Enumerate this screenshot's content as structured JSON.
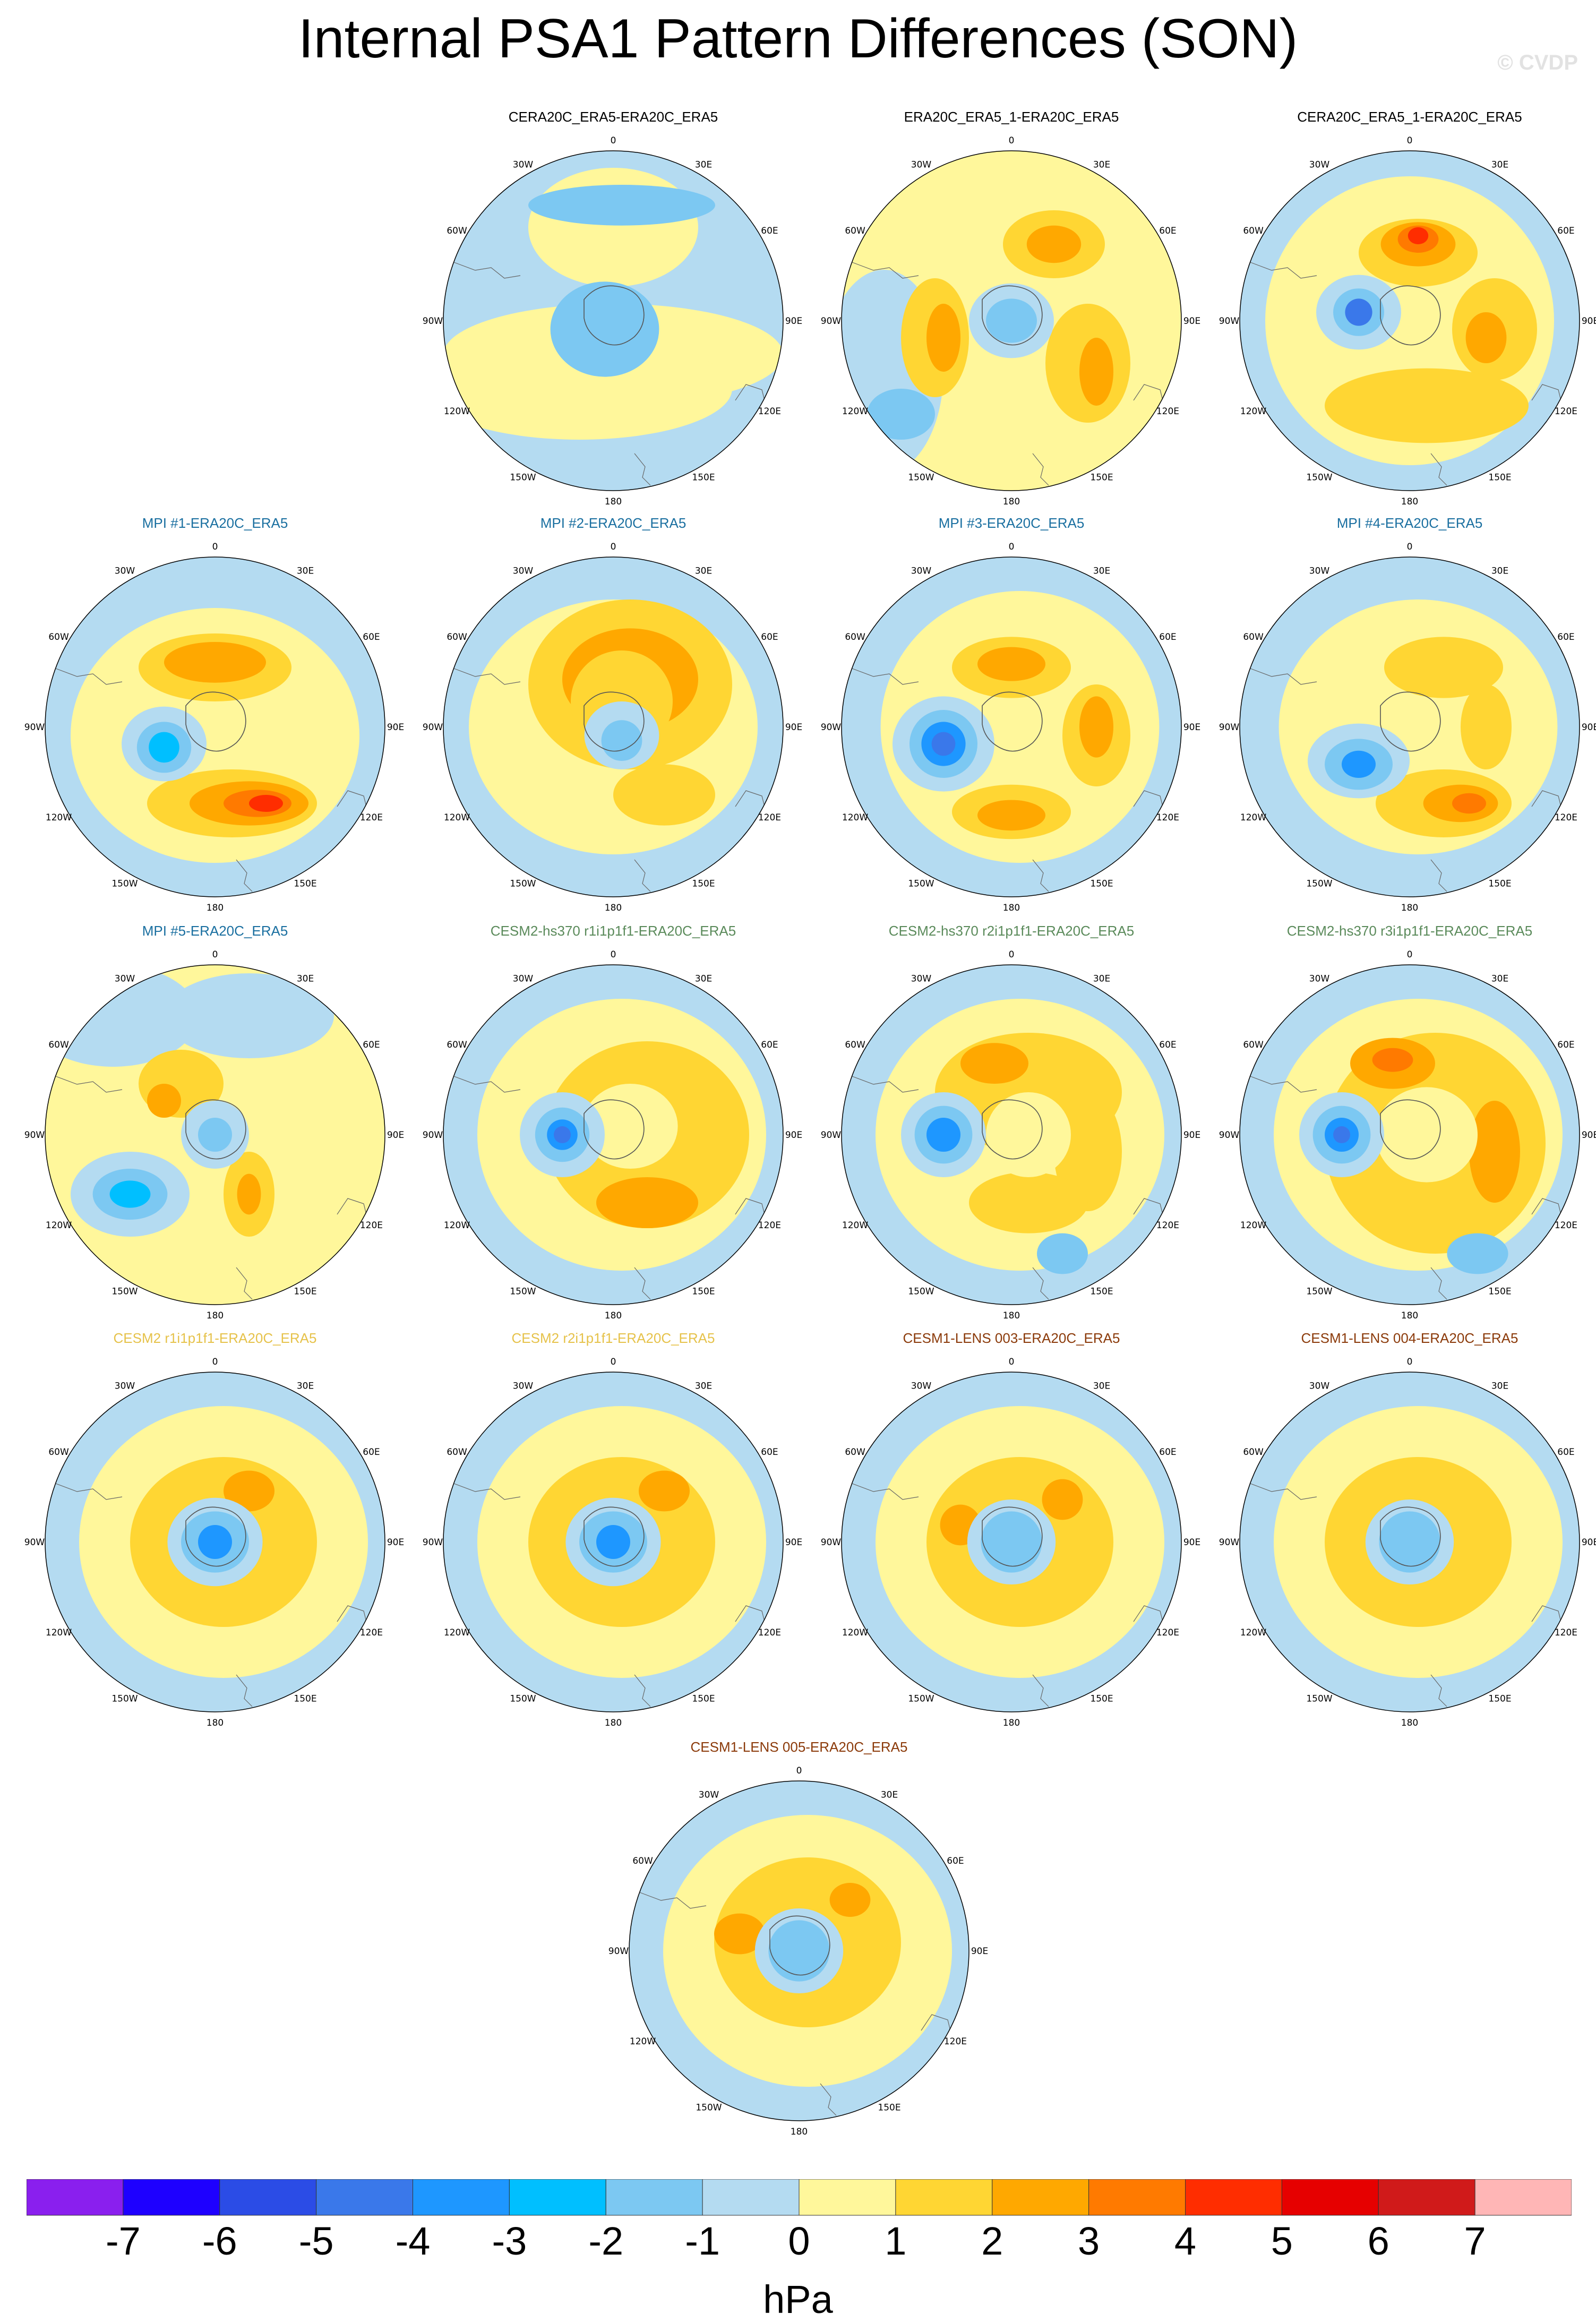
{
  "title": "Internal PSA1 Pattern Differences (SON)",
  "watermark": "© CVDP",
  "units": "hPa",
  "longitude_labels": {
    "top": "0",
    "a30e": "30E",
    "a60e": "60E",
    "a90e": "90E",
    "a120e": "120E",
    "a150e": "150E",
    "bottom": "180",
    "a150w": "150W",
    "a120w": "120W",
    "a90w": "90W",
    "a60w": "60W",
    "a30w": "30W"
  },
  "colorbar": {
    "colors": [
      "#8a1fee",
      "#1e00ff",
      "#2b4ce6",
      "#3a78ea",
      "#1e97ff",
      "#00bfff",
      "#7cc8f2",
      "#b4dbf1",
      "#fff79b",
      "#ffd633",
      "#ffa800",
      "#ff7a00",
      "#ff2d00",
      "#e60000",
      "#d01a1a",
      "#ffb6b6"
    ],
    "ticks": [
      "-7",
      "-6",
      "-5",
      "-4",
      "-3",
      "-2",
      "-1",
      "0",
      "1",
      "2",
      "3",
      "4",
      "5",
      "6",
      "7"
    ]
  },
  "panels": [
    {
      "title": "CERA20C_ERA5-ERA20C_ERA5",
      "title_color": "#000000",
      "base": "#b4dbf1",
      "blobs": [
        [
          0,
          0.2,
          1.0,
          0.3,
          "#fff79b"
        ],
        [
          0,
          -0.55,
          0.5,
          0.35,
          "#fff79b"
        ],
        [
          -0.2,
          0.4,
          0.9,
          0.3,
          "#fff79b"
        ],
        [
          0.05,
          -0.68,
          0.55,
          0.12,
          "#7cc8f2"
        ],
        [
          -0.05,
          0.05,
          0.32,
          0.28,
          "#7cc8f2"
        ]
      ]
    },
    {
      "title": "ERA20C_ERA5_1-ERA20C_ERA5",
      "title_color": "#000000",
      "base": "#fff79b",
      "blobs": [
        [
          -0.75,
          0.3,
          0.35,
          0.6,
          "#b4dbf1"
        ],
        [
          0.25,
          -0.45,
          0.3,
          0.2,
          "#ffd633"
        ],
        [
          -0.45,
          0.1,
          0.2,
          0.35,
          "#ffd633"
        ],
        [
          0.45,
          0.25,
          0.25,
          0.35,
          "#ffd633"
        ],
        [
          0.25,
          -0.45,
          0.16,
          0.11,
          "#ffa800"
        ],
        [
          -0.4,
          0.1,
          0.1,
          0.2,
          "#ffa800"
        ],
        [
          0.5,
          0.3,
          0.1,
          0.2,
          "#ffa800"
        ],
        [
          0.0,
          0.0,
          0.25,
          0.22,
          "#b4dbf1"
        ],
        [
          0.0,
          0.0,
          0.15,
          0.13,
          "#7cc8f2"
        ],
        [
          -0.65,
          0.55,
          0.2,
          0.15,
          "#7cc8f2"
        ]
      ]
    },
    {
      "title": "CERA20C_ERA5_1-ERA20C_ERA5",
      "title_color": "#000000",
      "base": "#b4dbf1",
      "blobs": [
        [
          0.0,
          0.0,
          0.85,
          0.85,
          "#fff79b"
        ],
        [
          0.05,
          -0.4,
          0.35,
          0.2,
          "#ffd633"
        ],
        [
          0.05,
          -0.45,
          0.22,
          0.13,
          "#ffa800"
        ],
        [
          0.05,
          -0.48,
          0.12,
          0.08,
          "#ff7a00"
        ],
        [
          0.05,
          -0.5,
          0.06,
          0.05,
          "#ff2d00"
        ],
        [
          0.5,
          0.05,
          0.25,
          0.3,
          "#ffd633"
        ],
        [
          0.45,
          0.1,
          0.12,
          0.15,
          "#ffa800"
        ],
        [
          0.1,
          0.5,
          0.6,
          0.22,
          "#ffd633"
        ],
        [
          -0.3,
          -0.05,
          0.25,
          0.22,
          "#b4dbf1"
        ],
        [
          -0.3,
          -0.05,
          0.15,
          0.14,
          "#7cc8f2"
        ],
        [
          -0.3,
          -0.05,
          0.08,
          0.08,
          "#3a78ea"
        ]
      ]
    },
    {
      "title": "MPI #1-ERA20C_ERA5",
      "title_color": "#1a6fa0",
      "base": "#b4dbf1",
      "blobs": [
        [
          0.0,
          0.05,
          0.85,
          0.75,
          "#fff79b"
        ],
        [
          0.0,
          -0.35,
          0.45,
          0.2,
          "#ffd633"
        ],
        [
          0.0,
          -0.38,
          0.3,
          0.12,
          "#ffa800"
        ],
        [
          0.1,
          0.45,
          0.5,
          0.2,
          "#ffd633"
        ],
        [
          0.2,
          0.45,
          0.35,
          0.13,
          "#ffa800"
        ],
        [
          0.25,
          0.45,
          0.2,
          0.08,
          "#ff7a00"
        ],
        [
          0.3,
          0.45,
          0.1,
          0.05,
          "#ff2d00"
        ],
        [
          -0.3,
          0.1,
          0.25,
          0.22,
          "#b4dbf1"
        ],
        [
          -0.3,
          0.12,
          0.16,
          0.15,
          "#7cc8f2"
        ],
        [
          -0.3,
          0.12,
          0.09,
          0.09,
          "#00bfff"
        ]
      ]
    },
    {
      "title": "MPI #2-ERA20C_ERA5",
      "title_color": "#1a6fa0",
      "base": "#b4dbf1",
      "blobs": [
        [
          0.0,
          0.0,
          0.85,
          0.75,
          "#fff79b"
        ],
        [
          0.1,
          -0.25,
          0.6,
          0.5,
          "#ffd633"
        ],
        [
          0.1,
          -0.28,
          0.4,
          0.3,
          "#ffa800"
        ],
        [
          0.05,
          -0.15,
          0.3,
          0.3,
          "#ffd633"
        ],
        [
          0.05,
          0.05,
          0.22,
          0.2,
          "#b4dbf1"
        ],
        [
          0.05,
          0.08,
          0.12,
          0.12,
          "#7cc8f2"
        ],
        [
          0.3,
          0.4,
          0.3,
          0.18,
          "#ffd633"
        ]
      ]
    },
    {
      "title": "MPI #3-ERA20C_ERA5",
      "title_color": "#1a6fa0",
      "base": "#b4dbf1",
      "blobs": [
        [
          0.05,
          0.0,
          0.82,
          0.8,
          "#fff79b"
        ],
        [
          0.0,
          -0.35,
          0.35,
          0.18,
          "#ffd633"
        ],
        [
          0.0,
          -0.37,
          0.2,
          0.1,
          "#ffa800"
        ],
        [
          0.5,
          0.05,
          0.2,
          0.3,
          "#ffd633"
        ],
        [
          0.5,
          0.0,
          0.1,
          0.18,
          "#ffa800"
        ],
        [
          0.0,
          0.5,
          0.35,
          0.16,
          "#ffd633"
        ],
        [
          0.0,
          0.52,
          0.2,
          0.09,
          "#ffa800"
        ],
        [
          -0.4,
          0.1,
          0.3,
          0.28,
          "#b4dbf1"
        ],
        [
          -0.4,
          0.1,
          0.2,
          0.2,
          "#7cc8f2"
        ],
        [
          -0.4,
          0.1,
          0.13,
          0.13,
          "#1e97ff"
        ],
        [
          -0.4,
          0.1,
          0.07,
          0.07,
          "#3a78ea"
        ]
      ]
    },
    {
      "title": "MPI #4-ERA20C_ERA5",
      "title_color": "#1a6fa0",
      "base": "#b4dbf1",
      "blobs": [
        [
          0.05,
          0.0,
          0.82,
          0.75,
          "#fff79b"
        ],
        [
          0.2,
          -0.35,
          0.35,
          0.18,
          "#ffd633"
        ],
        [
          0.45,
          0.0,
          0.15,
          0.25,
          "#ffd633"
        ],
        [
          0.2,
          0.45,
          0.4,
          0.2,
          "#ffd633"
        ],
        [
          0.3,
          0.45,
          0.22,
          0.11,
          "#ffa800"
        ],
        [
          0.35,
          0.45,
          0.1,
          0.06,
          "#ff7a00"
        ],
        [
          -0.3,
          0.2,
          0.3,
          0.22,
          "#b4dbf1"
        ],
        [
          -0.3,
          0.22,
          0.2,
          0.15,
          "#7cc8f2"
        ],
        [
          -0.3,
          0.22,
          0.1,
          0.08,
          "#1e97ff"
        ]
      ]
    },
    {
      "title": "MPI #5-ERA20C_ERA5",
      "title_color": "#1a6fa0",
      "base": "#fff79b",
      "blobs": [
        [
          -0.6,
          -0.7,
          0.5,
          0.3,
          "#b4dbf1"
        ],
        [
          0.2,
          -0.7,
          0.5,
          0.25,
          "#b4dbf1"
        ],
        [
          -0.2,
          -0.3,
          0.25,
          0.2,
          "#ffd633"
        ],
        [
          -0.3,
          -0.2,
          0.1,
          0.1,
          "#ffa800"
        ],
        [
          0.2,
          0.35,
          0.15,
          0.25,
          "#ffd633"
        ],
        [
          0.2,
          0.35,
          0.07,
          0.12,
          "#ffa800"
        ],
        [
          -0.5,
          0.35,
          0.35,
          0.25,
          "#b4dbf1"
        ],
        [
          -0.5,
          0.35,
          0.22,
          0.15,
          "#7cc8f2"
        ],
        [
          -0.5,
          0.35,
          0.12,
          0.08,
          "#00bfff"
        ],
        [
          0.0,
          0.0,
          0.2,
          0.2,
          "#b4dbf1"
        ],
        [
          0.0,
          0.0,
          0.1,
          0.1,
          "#7cc8f2"
        ]
      ]
    },
    {
      "title": "CESM2-hs370 r1i1p1f1-ERA20C_ERA5",
      "title_color": "#5a8a5a",
      "base": "#b4dbf1",
      "blobs": [
        [
          0.05,
          0.0,
          0.85,
          0.8,
          "#fff79b"
        ],
        [
          0.2,
          0.0,
          0.6,
          0.55,
          "#ffd633"
        ],
        [
          0.2,
          0.4,
          0.3,
          0.15,
          "#ffa800"
        ],
        [
          0.1,
          -0.05,
          0.28,
          0.25,
          "#fff79b"
        ],
        [
          -0.3,
          0.0,
          0.25,
          0.25,
          "#b4dbf1"
        ],
        [
          -0.3,
          0.0,
          0.16,
          0.16,
          "#7cc8f2"
        ],
        [
          -0.3,
          0.0,
          0.09,
          0.09,
          "#1e97ff"
        ],
        [
          -0.3,
          0.0,
          0.05,
          0.05,
          "#3a78ea"
        ]
      ]
    },
    {
      "title": "CESM2-hs370 r2i1p1f1-ERA20C_ERA5",
      "title_color": "#5a8a5a",
      "base": "#b4dbf1",
      "blobs": [
        [
          0.05,
          0.0,
          0.85,
          0.8,
          "#fff79b"
        ],
        [
          0.1,
          -0.25,
          0.55,
          0.35,
          "#ffd633"
        ],
        [
          -0.1,
          -0.42,
          0.2,
          0.12,
          "#ffa800"
        ],
        [
          0.45,
          0.1,
          0.2,
          0.35,
          "#ffd633"
        ],
        [
          0.1,
          0.4,
          0.35,
          0.18,
          "#ffd633"
        ],
        [
          0.1,
          0.0,
          0.25,
          0.25,
          "#fff79b"
        ],
        [
          -0.4,
          0.0,
          0.25,
          0.25,
          "#b4dbf1"
        ],
        [
          -0.4,
          0.0,
          0.17,
          0.17,
          "#7cc8f2"
        ],
        [
          -0.4,
          0.0,
          0.1,
          0.1,
          "#1e97ff"
        ],
        [
          0.3,
          0.7,
          0.15,
          0.12,
          "#7cc8f2"
        ]
      ]
    },
    {
      "title": "CESM2-hs370 r3i1p1f1-ERA20C_ERA5",
      "title_color": "#5a8a5a",
      "base": "#b4dbf1",
      "blobs": [
        [
          0.05,
          0.0,
          0.85,
          0.8,
          "#fff79b"
        ],
        [
          0.15,
          0.05,
          0.65,
          0.65,
          "#ffd633"
        ],
        [
          -0.1,
          -0.42,
          0.25,
          0.15,
          "#ffa800"
        ],
        [
          -0.1,
          -0.44,
          0.12,
          0.07,
          "#ff7a00"
        ],
        [
          0.5,
          0.1,
          0.15,
          0.3,
          "#ffa800"
        ],
        [
          0.1,
          0.0,
          0.3,
          0.28,
          "#fff79b"
        ],
        [
          -0.4,
          0.0,
          0.25,
          0.25,
          "#b4dbf1"
        ],
        [
          -0.4,
          0.0,
          0.17,
          0.17,
          "#7cc8f2"
        ],
        [
          -0.4,
          0.0,
          0.1,
          0.1,
          "#1e97ff"
        ],
        [
          -0.4,
          0.0,
          0.05,
          0.05,
          "#3a78ea"
        ],
        [
          0.4,
          0.7,
          0.18,
          0.12,
          "#7cc8f2"
        ]
      ]
    },
    {
      "title": "CESM2 r1i1p1f1-ERA20C_ERA5",
      "title_color": "#e6c24a",
      "base": "#b4dbf1",
      "blobs": [
        [
          0.05,
          0.0,
          0.85,
          0.8,
          "#fff79b"
        ],
        [
          0.05,
          0.0,
          0.55,
          0.5,
          "#ffd633"
        ],
        [
          0.2,
          -0.3,
          0.15,
          0.12,
          "#ffa800"
        ],
        [
          0.0,
          0.0,
          0.28,
          0.26,
          "#b4dbf1"
        ],
        [
          0.0,
          0.0,
          0.2,
          0.18,
          "#7cc8f2"
        ],
        [
          0.0,
          0.0,
          0.1,
          0.1,
          "#1e97ff"
        ]
      ]
    },
    {
      "title": "CESM2 r2i1p1f1-ERA20C_ERA5",
      "title_color": "#e6c24a",
      "base": "#b4dbf1",
      "blobs": [
        [
          0.05,
          0.0,
          0.85,
          0.8,
          "#fff79b"
        ],
        [
          0.05,
          0.0,
          0.55,
          0.5,
          "#ffd633"
        ],
        [
          0.3,
          -0.3,
          0.15,
          0.12,
          "#ffa800"
        ],
        [
          0.0,
          0.0,
          0.28,
          0.26,
          "#b4dbf1"
        ],
        [
          0.0,
          0.0,
          0.2,
          0.18,
          "#7cc8f2"
        ],
        [
          0.0,
          0.0,
          0.1,
          0.1,
          "#1e97ff"
        ]
      ]
    },
    {
      "title": "CESM1-LENS 003-ERA20C_ERA5",
      "title_color": "#8b3a0a",
      "base": "#b4dbf1",
      "blobs": [
        [
          0.05,
          0.0,
          0.85,
          0.8,
          "#fff79b"
        ],
        [
          0.05,
          0.0,
          0.55,
          0.5,
          "#ffd633"
        ],
        [
          -0.3,
          -0.1,
          0.12,
          0.12,
          "#ffa800"
        ],
        [
          0.3,
          -0.25,
          0.12,
          0.12,
          "#ffa800"
        ],
        [
          0.0,
          0.0,
          0.26,
          0.25,
          "#b4dbf1"
        ],
        [
          0.0,
          0.0,
          0.18,
          0.18,
          "#7cc8f2"
        ]
      ]
    },
    {
      "title": "CESM1-LENS 004-ERA20C_ERA5",
      "title_color": "#8b3a0a",
      "base": "#b4dbf1",
      "blobs": [
        [
          0.05,
          0.0,
          0.85,
          0.8,
          "#fff79b"
        ],
        [
          0.05,
          0.0,
          0.55,
          0.5,
          "#ffd633"
        ],
        [
          0.0,
          0.0,
          0.26,
          0.25,
          "#b4dbf1"
        ],
        [
          0.0,
          0.0,
          0.18,
          0.18,
          "#7cc8f2"
        ]
      ]
    },
    {
      "title": "CESM1-LENS 005-ERA20C_ERA5",
      "title_color": "#8b3a0a",
      "base": "#b4dbf1",
      "blobs": [
        [
          0.05,
          0.0,
          0.85,
          0.8,
          "#fff79b"
        ],
        [
          0.05,
          -0.05,
          0.55,
          0.5,
          "#ffd633"
        ],
        [
          -0.35,
          -0.1,
          0.15,
          0.12,
          "#ffa800"
        ],
        [
          0.3,
          -0.3,
          0.12,
          0.1,
          "#ffa800"
        ],
        [
          0.0,
          0.0,
          0.26,
          0.25,
          "#b4dbf1"
        ],
        [
          0.0,
          0.0,
          0.18,
          0.18,
          "#7cc8f2"
        ]
      ]
    }
  ]
}
